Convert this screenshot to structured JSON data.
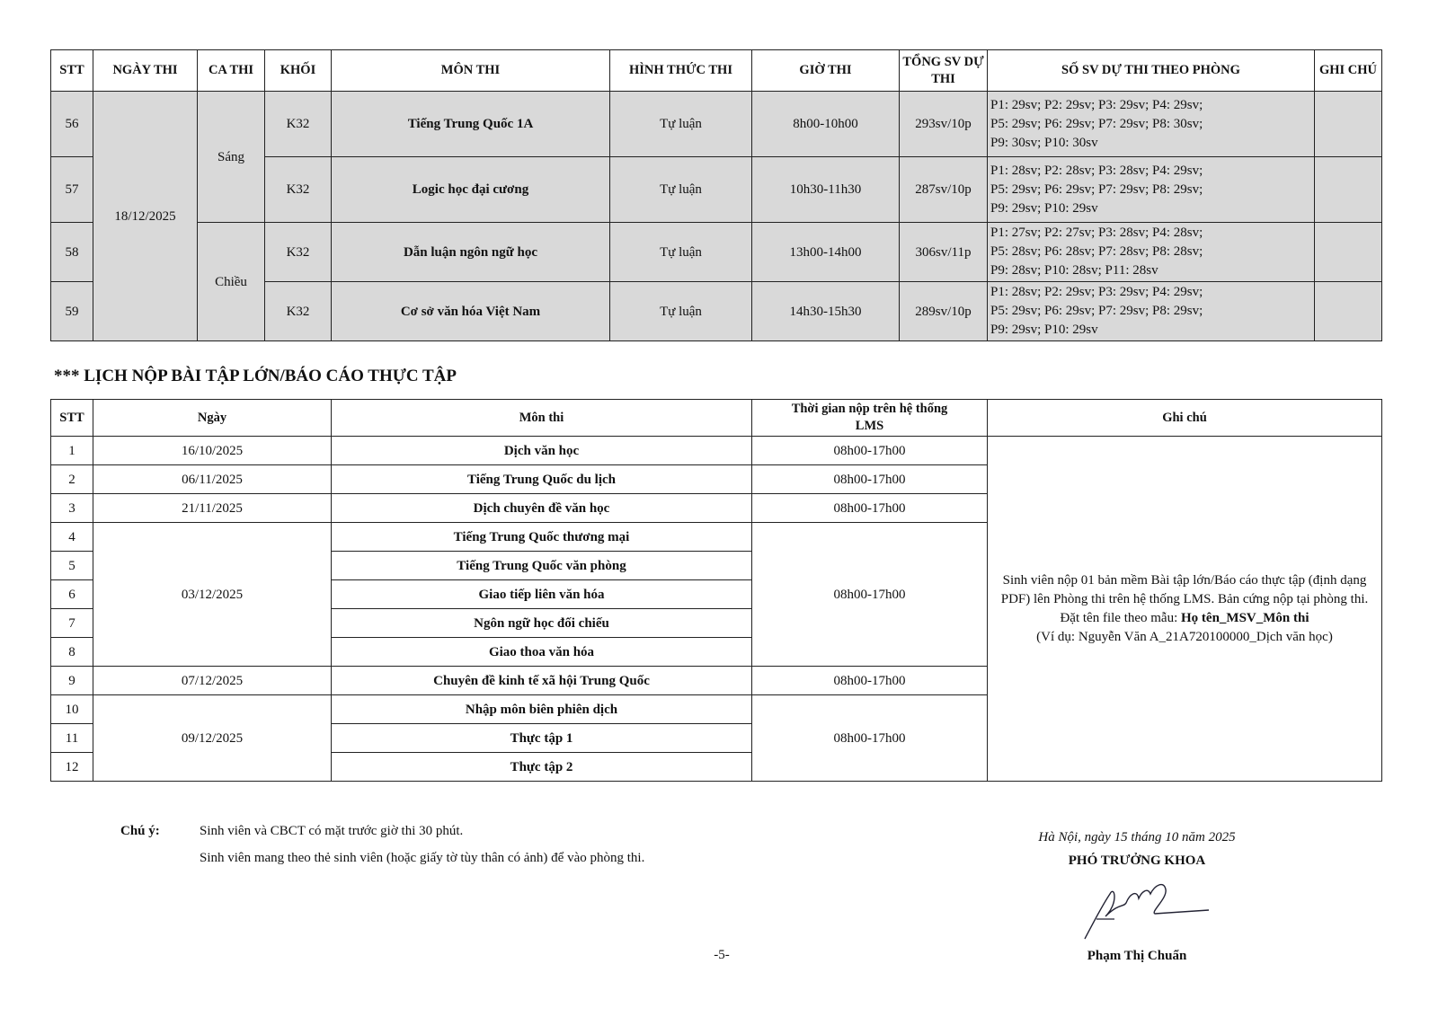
{
  "exam_table": {
    "headers": [
      "STT",
      "NGÀY THI",
      "CA THI",
      "KHỐI",
      "MÔN THI",
      "HÌNH THỨC THI",
      "GIỜ THI",
      "TỔNG SV DỰ THI",
      "SỐ SV DỰ THI THEO PHÒNG",
      "GHI CHÚ"
    ],
    "date": "18/12/2025",
    "shifts": [
      "Sáng",
      "Chiều"
    ],
    "rows": [
      {
        "stt": "56",
        "khoi": "K32",
        "mon": "Tiếng Trung Quốc 1A",
        "hinh_thuc": "Tự luận",
        "gio": "8h00-10h00",
        "tong": "293sv/10p",
        "rooms": [
          "P1: 29sv; P2: 29sv; P3: 29sv; P4: 29sv;",
          "P5: 29sv; P6: 29sv; P7: 29sv; P8: 30sv;",
          "P9: 30sv; P10: 30sv"
        ],
        "ghi_chu": ""
      },
      {
        "stt": "57",
        "khoi": "K32",
        "mon": "Logic học đại cương",
        "hinh_thuc": "Tự luận",
        "gio": "10h30-11h30",
        "tong": "287sv/10p",
        "rooms": [
          "P1: 28sv; P2: 28sv; P3: 28sv; P4: 29sv;",
          "P5: 29sv; P6: 29sv; P7: 29sv; P8: 29sv;",
          "P9: 29sv; P10: 29sv"
        ],
        "ghi_chu": ""
      },
      {
        "stt": "58",
        "khoi": "K32",
        "mon": "Dẫn luận ngôn ngữ học",
        "hinh_thuc": "Tự luận",
        "gio": "13h00-14h00",
        "tong": "306sv/11p",
        "rooms": [
          "P1: 27sv; P2: 27sv; P3: 28sv; P4: 28sv;",
          "P5: 28sv; P6: 28sv; P7: 28sv; P8: 28sv;",
          "P9: 28sv; P10: 28sv; P11: 28sv"
        ],
        "ghi_chu": ""
      },
      {
        "stt": "59",
        "khoi": "K32",
        "mon": "Cơ sở văn hóa Việt Nam",
        "hinh_thuc": "Tự luận",
        "gio": "14h30-15h30",
        "tong": "289sv/10p",
        "rooms": [
          "P1: 28sv; P2: 29sv; P3: 29sv; P4: 29sv;",
          "P5: 29sv; P6: 29sv; P7: 29sv; P8: 29sv;",
          "P9: 29sv; P10: 29sv"
        ],
        "ghi_chu": ""
      }
    ]
  },
  "section_title": "*** LỊCH NỘP BÀI TẬP LỚN/BÁO CÁO THỰC TẬP",
  "submit_table": {
    "headers": [
      "STT",
      "Ngày",
      "Môn thi",
      "Thời gian nộp trên hệ thống LMS",
      "Ghi chú"
    ],
    "subjects": [
      "Dịch văn học",
      "Tiếng Trung Quốc du lịch",
      "Dịch chuyên đề văn học",
      "Tiếng Trung Quốc thương mại",
      "Tiếng Trung Quốc văn phòng",
      "Giao tiếp liên văn hóa",
      "Ngôn ngữ học đối chiếu",
      "Giao thoa văn hóa",
      "Chuyên đề kinh tế xã hội Trung Quốc",
      "Nhập môn biên phiên dịch",
      "Thực tập 1",
      "Thực tập 2"
    ],
    "dates": [
      "16/10/2025",
      "06/11/2025",
      "21/11/2025",
      "03/12/2025",
      "07/12/2025",
      "09/12/2025"
    ],
    "time": "08h00-17h00",
    "note_lines": [
      "Sinh viên nộp 01 bản mềm Bài tập lớn/Báo cáo thực tập (định dạng PDF) lên Phòng thi trên hệ thống LMS. Bản cứng nộp tại phòng thi."
    ],
    "note_name_label": "Đặt tên file theo mẫu: ",
    "note_name_pattern": "Họ tên_MSV_Môn thi",
    "note_example": "(Ví dụ: Nguyễn Văn A_21A720100000_Dịch văn học)"
  },
  "footer": {
    "note_label": "Chú ý:",
    "notes": [
      "Sinh viên và CBCT có mặt trước giờ thi 30 phút.",
      "Sinh viên mang theo thẻ sinh viên (hoặc giấy tờ tùy thân có ảnh) để vào phòng thi."
    ],
    "place_date": "Hà Nội, ngày 15 tháng 10 năm 2025",
    "signer_title": "PHÓ TRƯỞNG KHOA",
    "signer_name": "Phạm Thị Chuẩn",
    "page_number": "-5-"
  }
}
